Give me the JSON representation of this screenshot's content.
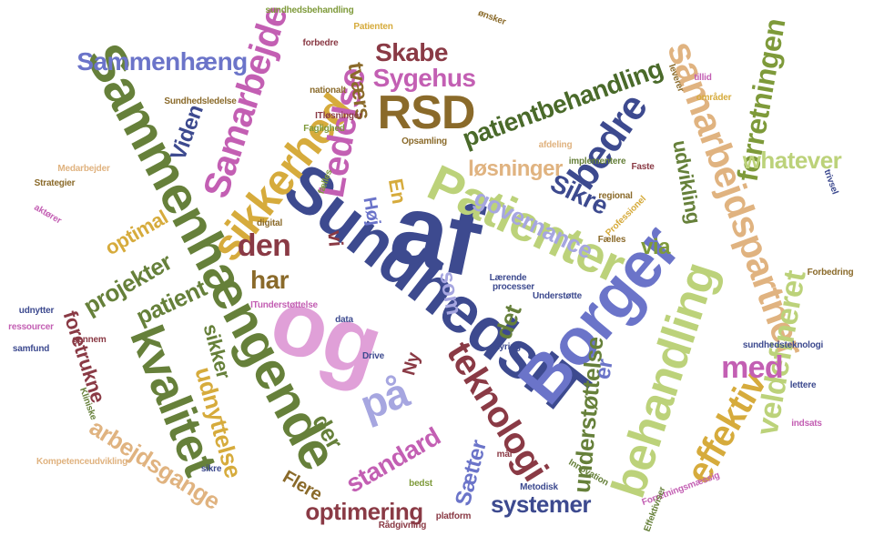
{
  "palette": {
    "olive": "#66803a",
    "navy": "#3d4a8f",
    "periwinkle": "#6b74c9",
    "lavender": "#a6a6e0",
    "gold": "#d6ab3c",
    "pink": "#e38ad3",
    "orchid": "#c35fb3",
    "brown": "#8a6a2a",
    "maroon": "#8a3a45",
    "lime": "#bcd27a",
    "sage": "#7e9a3a",
    "tan": "#e0b380",
    "teal": "#4a7a8a"
  },
  "words": [
    "SundhedsIT",
    "af",
    "og",
    "Borger",
    "Patienter",
    "Sammenhængende",
    "behandling",
    "kvalitet",
    "sikkerhed",
    "samarbejdspartner",
    "RSD",
    "Ledelse",
    "Samarbejde",
    "teknologi",
    "bedre",
    "effektiv",
    "patientbehandling",
    "Sammenhæng",
    "Skabe",
    "Sygehus",
    "på",
    "veldefineret",
    "forretningen",
    "whatever",
    "optimering",
    "systemer",
    "understøttelse",
    "løsninger",
    "governance",
    "udnyttelse",
    "arbejdsgange",
    "projekter",
    "patient",
    "den",
    "har",
    "Sikre",
    "via",
    "med",
    "standard",
    "Sætter",
    "der",
    "det",
    "Flere",
    "foretrukne",
    "optimal",
    "Viden",
    "En",
    "som",
    "Høj",
    "er",
    "udvikling",
    "tværs",
    "Ny",
    "sikker",
    "vi"
  ],
  "small_words": [
    "sundhedsbehandling",
    "Patienten",
    "Sundhedsledelse",
    "Medarbejder",
    "Strategier",
    "Kompetenceudvikling",
    "Rådgivning",
    "platform",
    "Metodisk",
    "Innovation",
    "Forretningsmæssig",
    "Understøtte",
    "Lærende",
    "processer",
    "sundhedsteknologi",
    "Forbedring",
    "Faste",
    "regional",
    "Fælles",
    "Professionel",
    "implementere",
    "Opsamling",
    "aktører",
    "afdeling",
    "styring",
    "udnytter",
    "samfund",
    "gennem",
    "ressourcer",
    "Kliniske",
    "Drive",
    "sikre",
    "bedst",
    "fælles",
    "digital",
    "data",
    "indsats",
    "mål",
    "trivsel",
    "ITløsninger",
    "ITunderstøttelse",
    "ønsker",
    "tillid",
    "Faglighed",
    "nationalt",
    "forbedre",
    "Effektiviser",
    "leverer",
    "lettere",
    "områder"
  ]
}
